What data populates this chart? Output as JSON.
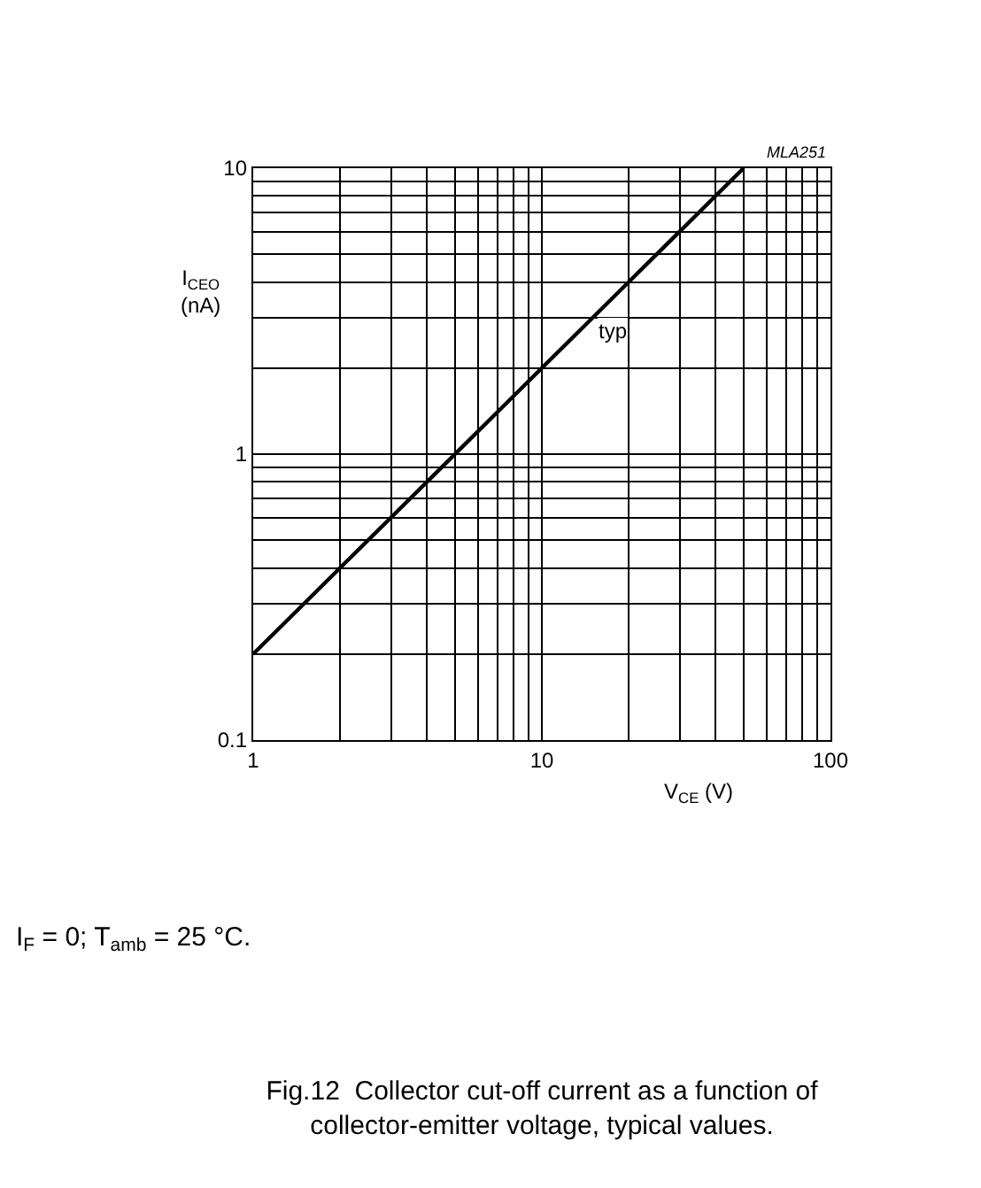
{
  "chart_data": {
    "type": "line",
    "title": "Fig.12  Collector cut-off current as a function of collector-emitter voltage, typical values.",
    "xlabel": "V$_{CE}$ (V)",
    "ylabel": "I$_{CEO}$ (nA)",
    "x": [
      1,
      2,
      5,
      10,
      20,
      50
    ],
    "series": [
      {
        "color": "#000000",
        "values": [
          0.2,
          0.4,
          1,
          2,
          4,
          10
        ]
      }
    ],
    "log": "xy",
    "grid": true,
    "marker": "none",
    "line_style": "solid",
    "xlim": [
      1,
      100
    ],
    "ylim": [
      0.1,
      10
    ],
    "xticks": [
      1,
      {
        "value": 2,
        "label": null
      },
      {
        "value": 3,
        "label": null
      },
      {
        "value": 4,
        "label": null
      },
      {
        "value": 5,
        "label": null
      },
      {
        "value": 6,
        "label": null
      },
      {
        "value": 7,
        "label": null
      },
      {
        "value": 8,
        "label": null
      },
      {
        "value": 9,
        "label": null
      },
      10,
      {
        "value": 20,
        "label": null
      },
      {
        "value": 30,
        "label": null
      },
      {
        "value": 40,
        "label": null
      },
      {
        "value": 50,
        "label": null
      },
      {
        "value": 60,
        "label": null
      },
      {
        "value": 70,
        "label": null
      },
      {
        "value": 80,
        "label": null
      },
      {
        "value": 90,
        "label": null
      },
      100
    ],
    "yticks": [
      0.1,
      {
        "value": 0.2,
        "label": null
      },
      {
        "value": 0.3,
        "label": null
      },
      {
        "value": 0.4,
        "label": null
      },
      {
        "value": 0.5,
        "label": null
      },
      {
        "value": 0.6,
        "label": null
      },
      {
        "value": 0.7,
        "label": null
      },
      {
        "value": 0.8,
        "label": null
      },
      {
        "value": 0.9,
        "label": null
      },
      1,
      {
        "value": 2,
        "label": null
      },
      {
        "value": 3,
        "label": null
      },
      {
        "value": 4,
        "label": null
      },
      {
        "value": 5,
        "label": null
      },
      {
        "value": 6,
        "label": null
      },
      {
        "value": 7,
        "label": null
      },
      {
        "value": 8,
        "label": null
      },
      {
        "value": 9,
        "label": null
      },
      10
    ],
    "annotations": [
      {
        "text": "typ",
        "x": 15,
        "y": 3
      },
      "MLA251",
      "I$_{F}$ = 0; T$_{amb}$ = 25 °C."
    ]
  }
}
